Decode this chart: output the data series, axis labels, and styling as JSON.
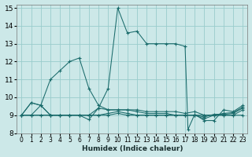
{
  "xlabel": "Humidex (Indice chaleur)",
  "bg_color": "#cce8e8",
  "grid_color": "#99cccc",
  "line_color": "#1a6b6b",
  "xlim": [
    -0.5,
    23.5
  ],
  "ylim": [
    8,
    15.2
  ],
  "xticks": [
    0,
    1,
    2,
    3,
    4,
    5,
    6,
    7,
    8,
    9,
    10,
    11,
    12,
    13,
    14,
    15,
    16,
    17,
    18,
    19,
    20,
    21,
    22,
    23
  ],
  "yticks": [
    8,
    9,
    10,
    11,
    12,
    13,
    14,
    15
  ],
  "lines": [
    {
      "x": [
        0,
        1,
        2,
        3,
        4,
        5,
        6,
        7,
        8,
        9,
        10,
        11,
        12,
        13,
        14,
        15,
        16,
        17,
        18,
        19,
        20,
        21,
        22,
        23
      ],
      "y": [
        9.0,
        9.7,
        9.55,
        11.0,
        11.5,
        12.0,
        12.2,
        10.5,
        9.55,
        9.3,
        9.3,
        9.3,
        9.3,
        9.2,
        9.2,
        9.2,
        9.2,
        9.1,
        9.2,
        9.0,
        9.0,
        9.0,
        9.0,
        9.0
      ]
    },
    {
      "x": [
        0,
        1,
        2,
        3,
        4,
        5,
        6,
        7,
        8,
        9,
        10,
        11,
        12,
        13,
        14,
        15,
        16,
        17,
        18,
        19,
        20,
        21,
        22,
        23
      ],
      "y": [
        9.0,
        9.0,
        9.55,
        9.0,
        9.0,
        9.0,
        9.0,
        9.0,
        9.4,
        9.3,
        9.3,
        9.3,
        9.2,
        9.1,
        9.1,
        9.1,
        9.0,
        9.0,
        9.0,
        8.8,
        9.0,
        9.1,
        9.15,
        9.45
      ]
    },
    {
      "x": [
        0,
        1,
        2,
        3,
        4,
        5,
        6,
        7,
        8,
        9,
        10,
        11,
        12,
        13,
        14,
        15,
        16,
        17,
        18,
        19,
        20,
        21,
        22,
        23
      ],
      "y": [
        9.0,
        9.0,
        9.0,
        9.0,
        9.0,
        9.0,
        9.0,
        9.0,
        9.0,
        9.1,
        9.2,
        9.1,
        9.0,
        9.0,
        9.0,
        9.0,
        9.0,
        9.0,
        9.0,
        8.9,
        9.05,
        9.05,
        9.1,
        9.4
      ]
    },
    {
      "x": [
        0,
        1,
        2,
        3,
        4,
        5,
        6,
        7,
        8,
        9,
        10,
        11,
        12,
        13,
        14,
        15,
        16,
        17,
        18,
        19,
        20,
        21,
        22,
        23
      ],
      "y": [
        9.0,
        9.0,
        9.0,
        9.0,
        9.0,
        9.0,
        9.0,
        9.0,
        9.0,
        9.0,
        9.1,
        9.0,
        9.0,
        9.0,
        9.0,
        9.0,
        9.0,
        9.0,
        9.0,
        9.0,
        9.0,
        9.0,
        9.0,
        9.3
      ]
    },
    {
      "x": [
        0,
        1,
        2,
        3,
        4,
        5,
        6,
        7,
        8,
        9,
        10,
        11,
        12,
        13,
        14,
        15,
        16,
        17,
        17.3,
        18,
        19,
        20,
        21,
        22,
        23
      ],
      "y": [
        9.0,
        9.7,
        9.55,
        9.0,
        9.0,
        9.0,
        9.0,
        8.75,
        9.4,
        10.5,
        15.0,
        13.6,
        13.7,
        13.0,
        13.0,
        13.0,
        13.0,
        12.85,
        8.2,
        9.05,
        8.7,
        8.7,
        9.3,
        9.2,
        9.55
      ]
    }
  ]
}
